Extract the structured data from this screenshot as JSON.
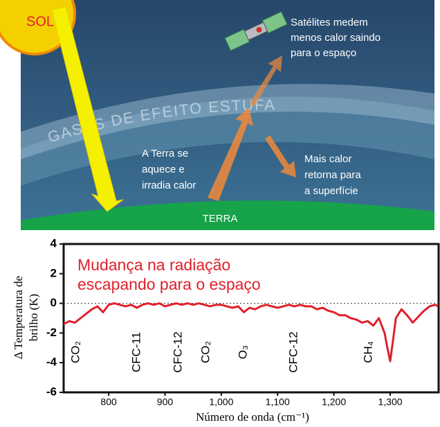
{
  "illustration": {
    "sun": "SOL",
    "satellite_note": [
      "Satélites medem",
      "menos calor saindo",
      "para o espaço"
    ],
    "gases": "GASES DE EFEITO ESTUFA",
    "earth_note": [
      "A Terra se",
      "aquece e",
      "irradia calor"
    ],
    "return_note": [
      "Mais calor",
      "retorna para",
      "a superfície"
    ],
    "earth": "TERRA"
  },
  "chart_data": {
    "type": "line",
    "title": "Mudança na radiação escapando para o espaço",
    "ylabel": [
      "Δ Temperatura de",
      "brilho (K)"
    ],
    "xlabel": "Número de onda (cm⁻¹)",
    "annotations": [
      "CO₂",
      "CFC-11",
      "CFC-12",
      "CO₂",
      "O₃",
      "CFC-12",
      "CH₄"
    ],
    "color": "#e0202a",
    "x": [
      720,
      730,
      740,
      750,
      760,
      770,
      780,
      790,
      800,
      810,
      820,
      830,
      840,
      850,
      860,
      870,
      880,
      890,
      900,
      910,
      920,
      930,
      940,
      950,
      960,
      970,
      980,
      990,
      1000,
      1010,
      1020,
      1030,
      1040,
      1050,
      1060,
      1070,
      1080,
      1090,
      1100,
      1110,
      1120,
      1130,
      1140,
      1150,
      1160,
      1170,
      1180,
      1190,
      1200,
      1210,
      1220,
      1230,
      1240,
      1250,
      1260,
      1270,
      1280,
      1290,
      1295,
      1300,
      1305,
      1310,
      1320,
      1330,
      1340,
      1350,
      1360,
      1370,
      1380,
      1385
    ],
    "values": [
      -1.4,
      -1.2,
      -1.3,
      -1.0,
      -0.7,
      -0.4,
      -0.2,
      -0.6,
      -0.1,
      0,
      -0.1,
      -0.2,
      -0.1,
      -0.3,
      -0.1,
      0,
      -0.1,
      0,
      -0.2,
      -0.1,
      0,
      -0.1,
      0,
      -0.1,
      0,
      -0.1,
      -0.2,
      -0.1,
      -0.1,
      -0.2,
      -0.3,
      -0.2,
      -0.6,
      -0.3,
      -0.4,
      -0.2,
      -0.1,
      -0.2,
      -0.3,
      -0.2,
      -0.1,
      -0.2,
      -0.1,
      -0.2,
      -0.2,
      -0.4,
      -0.3,
      -0.5,
      -0.6,
      -0.8,
      -0.8,
      -1.0,
      -1.1,
      -1.3,
      -1.2,
      -1.5,
      -1.0,
      -2.0,
      -3.0,
      -3.9,
      -2.5,
      -1.0,
      -0.4,
      -0.8,
      -1.3,
      -0.9,
      -0.5,
      -0.2,
      -0.1,
      -0.2
    ],
    "xlim": [
      720,
      1386
    ],
    "ylim": [
      -6,
      4
    ],
    "xticks": [
      800,
      900,
      {
        "value": 1000,
        "label": "1,000"
      },
      {
        "value": 1100,
        "label": "1,100"
      },
      {
        "value": 1200,
        "label": "1,200"
      },
      {
        "value": 1300,
        "label": "1,300"
      }
    ],
    "yticks": [
      -6,
      -4,
      -2,
      0,
      2,
      4
    ]
  }
}
